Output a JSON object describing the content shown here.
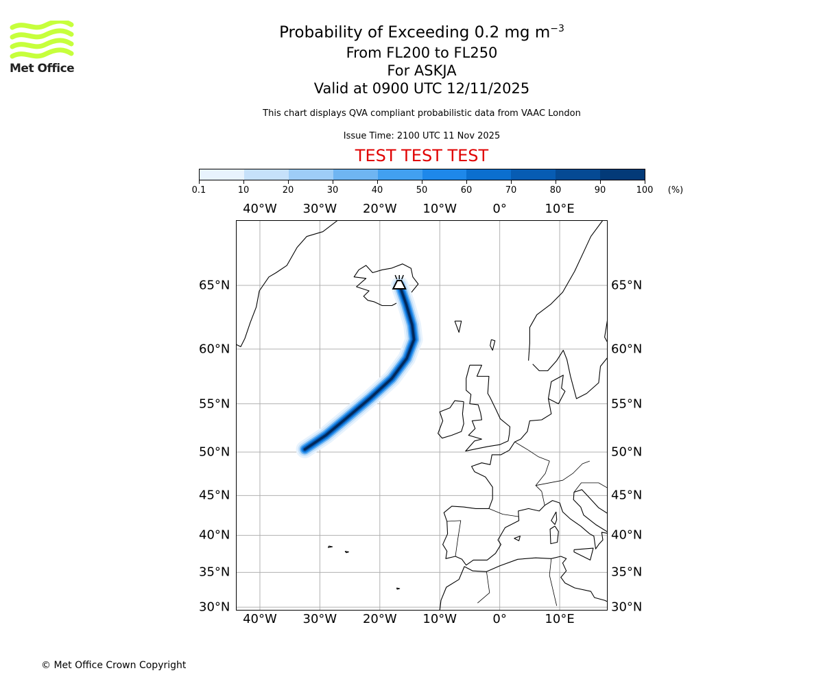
{
  "header": {
    "title_main": "Probability of Exceeding 0.2 mg m",
    "title_superscript": "−3",
    "level_range": "From FL200 to FL250",
    "volcano_line": "For ASKJA",
    "valid_time": "Valid at 0900 UTC 12/11/2025",
    "description": "This chart displays QVA compliant probabilistic data from VAAC London",
    "issue_time": "Issue Time: 2100 UTC 11 Nov 2025",
    "test_banner": "TEST TEST TEST"
  },
  "logo": {
    "text": "Met Office",
    "color": "#c6ff3c",
    "icon": "met-office-wave-logo-icon"
  },
  "colorbar": {
    "ticks": [
      "0.1",
      "10",
      "20",
      "30",
      "40",
      "50",
      "60",
      "70",
      "80",
      "90",
      "100"
    ],
    "unit": "(%)",
    "colors": [
      "#e8f3fd",
      "#c6e1fa",
      "#9ecdf7",
      "#6fb5f2",
      "#42a0f0",
      "#1e88ea",
      "#0b6fcf",
      "#075cb3",
      "#054a94",
      "#033a78",
      "#02285a"
    ]
  },
  "map": {
    "projection": "Mercator",
    "extent_lon": [
      -44,
      18
    ],
    "extent_lat": [
      29.5,
      69.3
    ],
    "lon_labels": [
      "40°W",
      "30°W",
      "20°W",
      "10°W",
      "0°",
      "10°E"
    ],
    "lon_values": [
      -40,
      -30,
      -20,
      -10,
      0,
      10
    ],
    "lat_labels": [
      "30°N",
      "35°N",
      "40°N",
      "45°N",
      "50°N",
      "55°N",
      "60°N",
      "65°N"
    ],
    "lat_values": [
      30,
      35,
      40,
      45,
      50,
      55,
      60,
      65
    ],
    "grid": true,
    "volcano": {
      "name": "ASKJA",
      "lon": -16.75,
      "lat": 65.05,
      "icon": "volcano-icon"
    },
    "plume_path": [
      [
        -16.7,
        65.0
      ],
      [
        -15.6,
        63.6
      ],
      [
        -14.6,
        62.0
      ],
      [
        -14.3,
        60.8
      ],
      [
        -15.5,
        59.2
      ],
      [
        -18.0,
        57.4
      ],
      [
        -21.5,
        55.6
      ],
      [
        -25.5,
        53.6
      ],
      [
        -29.0,
        51.8
      ],
      [
        -32.5,
        50.3
      ]
    ]
  },
  "footer": {
    "copyright": "© Met Office Crown Copyright"
  }
}
